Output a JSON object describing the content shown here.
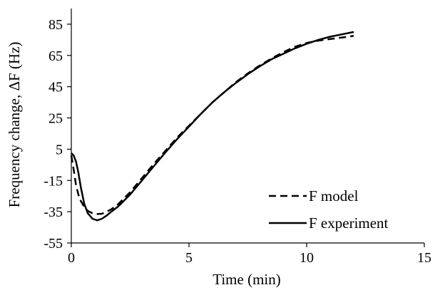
{
  "chart_data": {
    "type": "line",
    "xlabel": "Time (min)",
    "ylabel": "Frequency change, ΔF (Hz)",
    "xlim": [
      0,
      15
    ],
    "ylim": [
      -55,
      95
    ],
    "x_ticks": [
      0,
      5,
      10,
      15
    ],
    "y_ticks": [
      -55,
      -35,
      -15,
      5,
      25,
      45,
      65,
      85
    ],
    "grid": false,
    "legend_position": "bottom-right",
    "series": [
      {
        "name": "F model",
        "style": "dashed",
        "color": "#000000",
        "x": [
          0,
          0.1,
          0.2,
          0.3,
          0.4,
          0.55,
          0.7,
          0.9,
          1.1,
          1.3,
          1.5,
          1.7,
          2.0,
          2.5,
          3.0,
          3.5,
          4.0,
          4.5,
          5.0,
          5.5,
          6.0,
          6.5,
          7.0,
          7.5,
          8.0,
          8.5,
          9.0,
          9.5,
          10.0,
          10.5,
          11.0,
          11.5,
          12.0
        ],
        "y": [
          1,
          -8,
          -18,
          -24,
          -28,
          -32,
          -34.5,
          -36,
          -36.5,
          -36.3,
          -35,
          -33.5,
          -30,
          -22.5,
          -13.5,
          -4.5,
          4,
          12.5,
          20,
          27.5,
          35,
          41.5,
          48,
          53.5,
          58.5,
          63,
          67,
          70.5,
          73,
          74.5,
          75.5,
          76.5,
          77.5
        ]
      },
      {
        "name": "F experiment",
        "style": "solid",
        "color": "#000000",
        "x": [
          0,
          0.1,
          0.2,
          0.3,
          0.4,
          0.55,
          0.7,
          0.9,
          1.1,
          1.3,
          1.5,
          1.7,
          2.0,
          2.5,
          3.0,
          3.5,
          4.0,
          4.5,
          5.0,
          5.5,
          6.0,
          6.5,
          7.0,
          7.5,
          8.0,
          8.5,
          9.0,
          9.5,
          10.0,
          10.5,
          11.0,
          11.5,
          12.0
        ],
        "y": [
          2.5,
          1,
          -3,
          -10,
          -19,
          -30,
          -36,
          -39.5,
          -40.5,
          -39.5,
          -37.5,
          -35,
          -31.5,
          -24,
          -15,
          -6,
          3,
          11.5,
          19.5,
          27.5,
          35,
          41.5,
          47.5,
          53,
          58,
          62.5,
          66,
          69.5,
          72.5,
          75,
          77,
          78.5,
          80
        ]
      }
    ]
  }
}
